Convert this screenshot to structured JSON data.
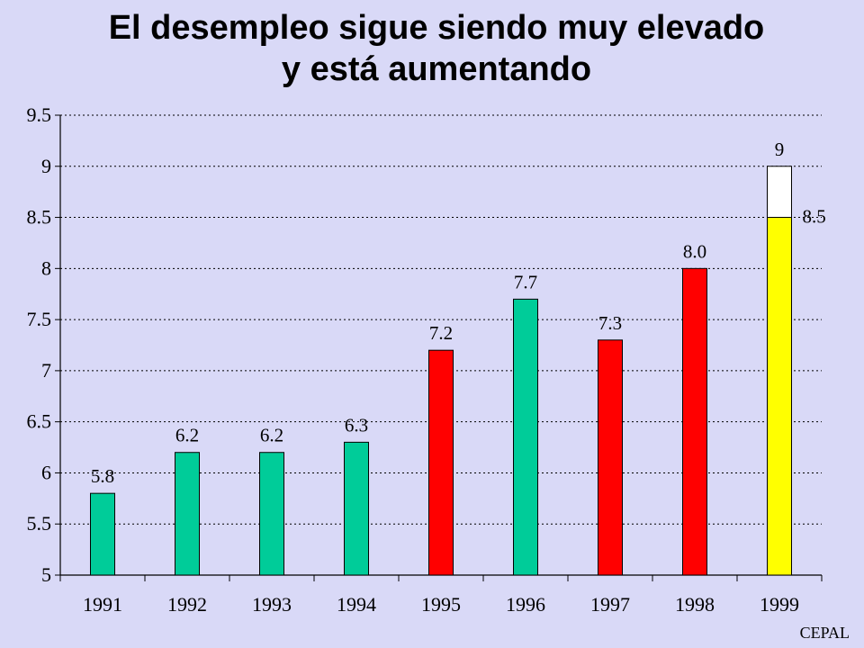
{
  "title": {
    "line1": "El desempleo sigue siendo muy elevado",
    "line2": "y está aumentando"
  },
  "source": "CEPAL",
  "colors": {
    "background": "#d9d9f7",
    "green": "#00cc99",
    "red": "#ff0000",
    "yellow": "#ffff00",
    "projection_box": "#ffffff"
  },
  "chart_data": {
    "type": "bar",
    "categories": [
      "1991",
      "1992",
      "1993",
      "1994",
      "1995",
      "1996",
      "1997",
      "1998",
      "1999"
    ],
    "values": [
      5.8,
      6.2,
      6.2,
      6.3,
      7.2,
      7.7,
      7.3,
      8.0,
      8.5
    ],
    "value_labels": [
      "5.8",
      "6.2",
      "6.2",
      "6.3",
      "7.2",
      "7.7",
      "7.3",
      "8.0",
      "8.5"
    ],
    "bar_colors": [
      "green",
      "green",
      "green",
      "green",
      "red",
      "green",
      "red",
      "red",
      "yellow"
    ],
    "projection": {
      "category": "1999",
      "value": 9,
      "label": "9"
    },
    "ylim": [
      5,
      9.5
    ],
    "yticks": [
      5,
      5.5,
      6,
      6.5,
      7,
      7.5,
      8,
      8.5,
      9,
      9.5
    ],
    "ytick_labels": [
      "5",
      "5.5",
      "6",
      "6.5",
      "7",
      "7.5",
      "8",
      "8.5",
      "9",
      "9.5"
    ],
    "grid": "horizontal dotted",
    "xlabel": "",
    "ylabel": ""
  }
}
